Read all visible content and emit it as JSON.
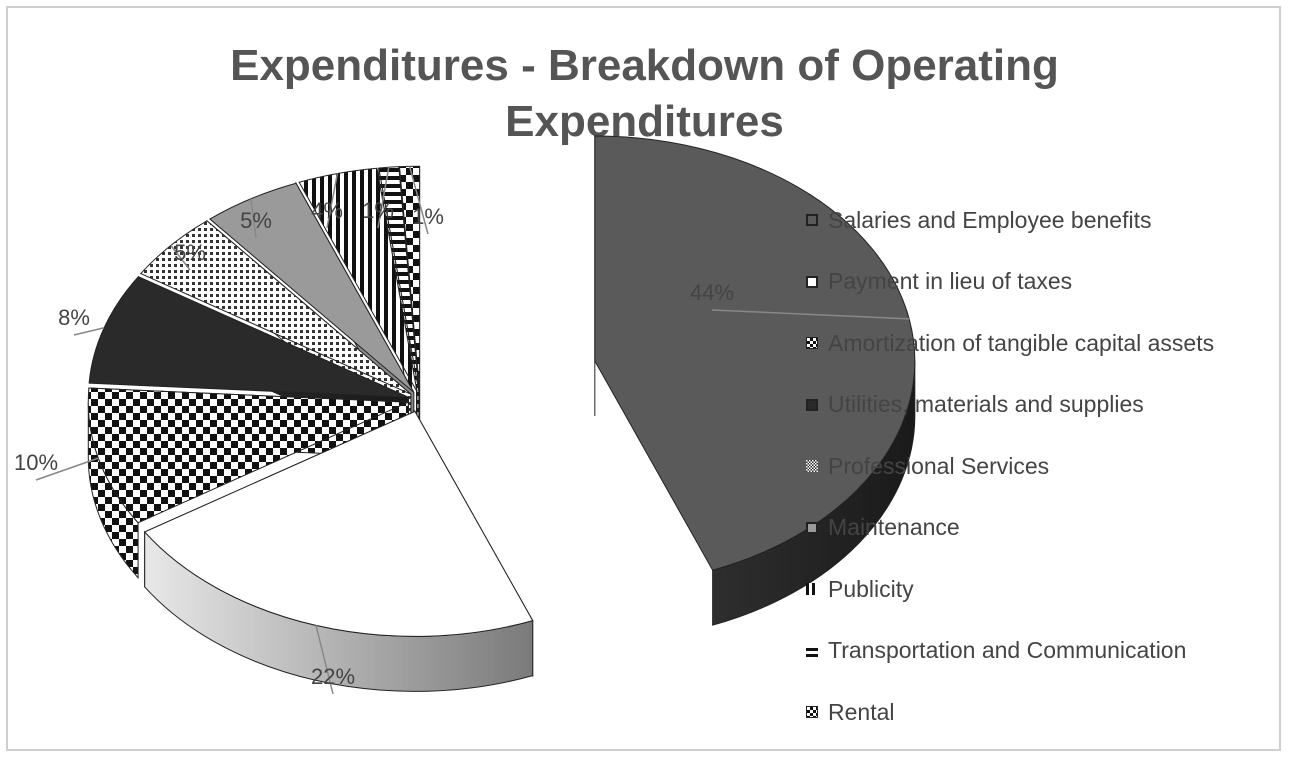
{
  "chart_data": {
    "type": "pie",
    "title": "Expenditures - Breakdown of Operating Expenditures",
    "title_lines": [
      "Expenditures - Breakdown of Operating",
      "Expenditures"
    ],
    "categories": [
      "Salaries and Employee benefits",
      "Payment in lieu of taxes",
      "Amortization of tangible capital assets",
      "Utilities, materials and supplies",
      "Professional Services",
      "Maintenance",
      "Publicity",
      "Transportation and Communication",
      "Rental"
    ],
    "values": [
      44,
      22,
      10,
      8,
      5,
      5,
      4,
      1,
      1
    ],
    "labels": [
      "44%",
      "22%",
      "10%",
      "8%",
      "5%",
      "5%",
      "4%",
      "1%",
      "1%"
    ],
    "exploded": true,
    "three_d": true,
    "legend_position": "right",
    "grid": false
  },
  "series_styles": [
    {
      "pattern": "solid",
      "color": "#5a5a5a"
    },
    {
      "pattern": "solid",
      "color": "#ffffff"
    },
    {
      "pattern": "checker",
      "color": "#1a1a1a"
    },
    {
      "pattern": "solid",
      "color": "#2a2a2a"
    },
    {
      "pattern": "dots",
      "color": "#444444"
    },
    {
      "pattern": "solid",
      "color": "#9a9a9a"
    },
    {
      "pattern": "vstripes",
      "color": "#111111"
    },
    {
      "pattern": "hstripes",
      "color": "#111111"
    },
    {
      "pattern": "checker",
      "color": "#111111"
    }
  ],
  "colors": {
    "title": "#555555",
    "text": "#444444",
    "border": "#cfcfcf",
    "edge": "#222222"
  }
}
